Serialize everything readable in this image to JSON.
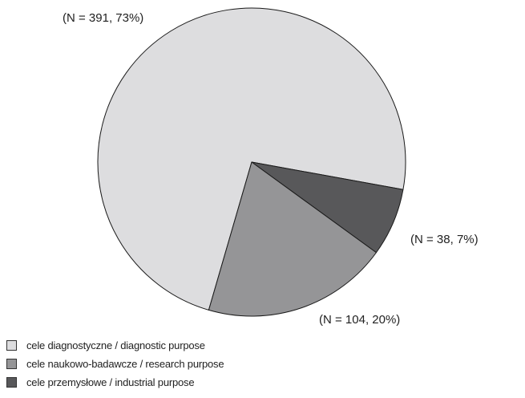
{
  "chart_data": {
    "type": "pie",
    "title": "",
    "slices": [
      {
        "label": "cele diagnostyczne / diagnostic purpose",
        "value": 391,
        "percent": 73,
        "annotation": "(N = 391, 73%)",
        "color": "#dddddf"
      },
      {
        "label": "cele przemysłowe / industrial purpose",
        "value": 38,
        "percent": 7,
        "annotation": "(N = 38, 7%)",
        "color": "#58585a"
      },
      {
        "label": "cele naukowo-badawcze / research purpose",
        "value": 104,
        "percent": 20,
        "annotation": "(N = 104, 20%)",
        "color": "#959597"
      }
    ],
    "legend": {
      "position": "bottom-left",
      "items": [
        {
          "label": "cele diagnostyczne / diagnostic purpose",
          "color": "#dddddf"
        },
        {
          "label": "cele naukowo-badawcze / research purpose",
          "color": "#959597"
        },
        {
          "label": "cele przemysłowe / industrial purpose",
          "color": "#58585a"
        }
      ]
    }
  }
}
